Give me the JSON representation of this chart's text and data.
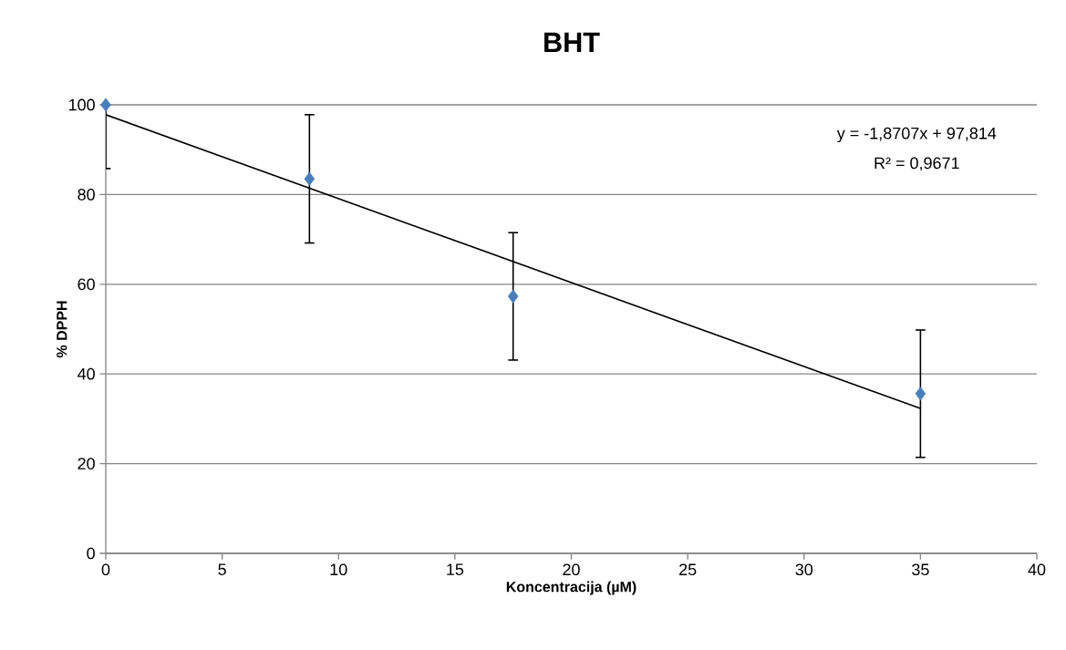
{
  "chart_data": {
    "type": "scatter",
    "title": "BHT",
    "xlabel": "Koncentracija (µM)",
    "ylabel": "% DPPH",
    "xlim": [
      0,
      40
    ],
    "ylim": [
      0,
      100
    ],
    "xticks": [
      0,
      5,
      10,
      15,
      20,
      25,
      30,
      35,
      40
    ],
    "yticks": [
      0,
      20,
      40,
      60,
      80,
      100
    ],
    "grid": "y",
    "annotations": [
      "y = -1,8707x + 97,814",
      "R² = 0,9671"
    ],
    "series": [
      {
        "color": "#4a7ebb",
        "marker": "diamond",
        "x": [
          0,
          8.75,
          17.5,
          35
        ],
        "values": [
          100,
          83.5,
          57.3,
          35.6
        ],
        "errors": [
          [
            85.8,
            100
          ],
          14.3,
          14.2,
          14.2
        ]
      },
      {
        "type": "line",
        "color": "#000000",
        "x": [
          0,
          35
        ],
        "values": [
          97.8,
          32.3
        ]
      }
    ]
  }
}
